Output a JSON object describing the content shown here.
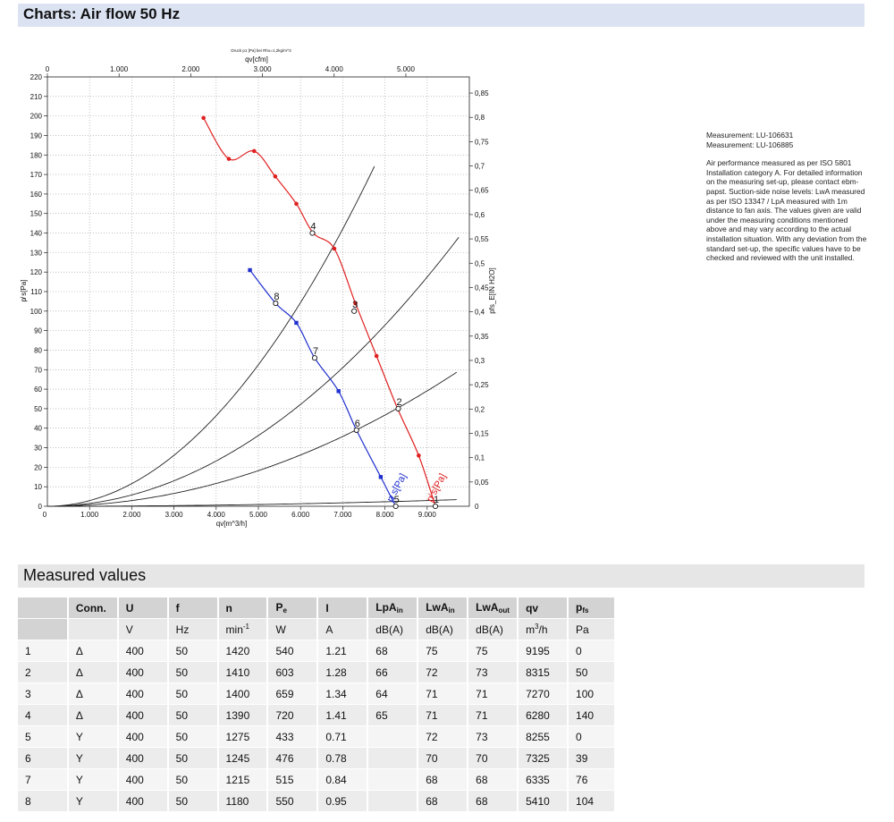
{
  "page": {
    "title": "Charts: Air flow 50 Hz",
    "measured_title": "Measured values"
  },
  "measurement": {
    "ids": [
      "Measurement: LU-106631",
      "Measurement: LU-106885"
    ],
    "note": "Air performance measured as per ISO 5801 Installation category A. For detailed information on the measuring set-up, please contact ebm-papst. Suction-side noise levels: LwA measured as per ISO 13347 / LpA measured with 1m distance to fan axis. The values given are valid under the measuring conditions mentioned above and may vary according to the actual installation situation. With any deviation from the standard set-up, the specific values have to be checked and reviewed with the unit installed."
  },
  "chart_data": {
    "type": "line",
    "top_caption": "Druck p1 [Pa] bei Rho=1,2kg/m^3",
    "xlabel": "qv[m^3/h]",
    "xlabel_top": "qv[cfm]",
    "ylabel": "p̸ s[Pa]",
    "ylabel_right": "pfs_E[IN H2O]",
    "xlim": [
      0,
      10000
    ],
    "ylim": [
      0,
      220
    ],
    "x_ticks": [
      "1.000",
      "2.000",
      "3.000",
      "4.000",
      "5.000",
      "6.000",
      "7.000",
      "8.000",
      "9.000"
    ],
    "x_tick_values": [
      1000,
      2000,
      3000,
      4000,
      5000,
      6000,
      7000,
      8000,
      9000
    ],
    "x_top_ticks": [
      "0",
      "1.000",
      "2.000",
      "3.000",
      "4.000",
      "5.000"
    ],
    "x_top_tick_values": [
      0,
      1000,
      2000,
      3000,
      4000,
      5000
    ],
    "y_ticks": [
      0,
      10,
      20,
      30,
      40,
      50,
      60,
      70,
      80,
      90,
      100,
      110,
      120,
      130,
      140,
      150,
      160,
      170,
      180,
      190,
      200,
      210,
      220
    ],
    "y_right_ticks": [
      "0,05",
      "0,1",
      "0,15",
      "0,2",
      "0,25",
      "0,3",
      "0,35",
      "0,4",
      "0,45",
      "0,5",
      "0,55",
      "0,6",
      "0,65",
      "0,7",
      "0,75",
      "0,8",
      "0,85"
    ],
    "y_right_tick_values": [
      0.05,
      0.1,
      0.15,
      0.2,
      0.25,
      0.3,
      0.35,
      0.4,
      0.45,
      0.5,
      0.55,
      0.6,
      0.65,
      0.7,
      0.75,
      0.8,
      0.85
    ],
    "grid": true,
    "series": [
      {
        "name": "p̸ s[Pa]",
        "color": "#e02020",
        "x": [
          3700,
          4300,
          4900,
          5400,
          5900,
          6300,
          6800,
          7300,
          7800,
          8300,
          8800,
          9195
        ],
        "y": [
          199,
          178,
          182,
          169,
          155,
          140,
          132,
          104,
          77,
          50,
          26,
          0
        ]
      },
      {
        "name": "p̸ s[Pa]",
        "color": "#2030d0",
        "x": [
          4800,
          5410,
          5900,
          6335,
          6900,
          7325,
          7900,
          8255
        ],
        "y": [
          121,
          104,
          94,
          76,
          59,
          39,
          15,
          0
        ]
      }
    ],
    "system_curves": [
      {
        "k": 2.9e-06,
        "x_end": 7750
      },
      {
        "k": 1.45e-06,
        "x_end": 9750
      },
      {
        "k": 7.3e-07,
        "x_end": 9700
      },
      {
        "k": 3.6e-08,
        "x_end": 9700
      }
    ],
    "points": [
      {
        "label": "1",
        "x": 9195,
        "y": 0
      },
      {
        "label": "2",
        "x": 8315,
        "y": 50
      },
      {
        "label": "3",
        "x": 7270,
        "y": 100
      },
      {
        "label": "4",
        "x": 6280,
        "y": 140
      },
      {
        "label": "5",
        "x": 8255,
        "y": 0
      },
      {
        "label": "6",
        "x": 7325,
        "y": 39
      },
      {
        "label": "7",
        "x": 6335,
        "y": 76
      },
      {
        "label": "8",
        "x": 5410,
        "y": 104
      }
    ]
  },
  "table": {
    "headers": [
      "",
      "Conn.",
      "U",
      "f",
      "n",
      "Pe",
      "I",
      "LpAin",
      "LwAin",
      "LwAout",
      "qv",
      "pfs"
    ],
    "units": [
      "",
      "",
      "V",
      "Hz",
      "min-1",
      "W",
      "A",
      "dB(A)",
      "dB(A)",
      "dB(A)",
      "m3/h",
      "Pa"
    ],
    "rows": [
      [
        "1",
        "Δ",
        "400",
        "50",
        "1420",
        "540",
        "1.21",
        "68",
        "75",
        "75",
        "9195",
        "0"
      ],
      [
        "2",
        "Δ",
        "400",
        "50",
        "1410",
        "603",
        "1.28",
        "66",
        "72",
        "73",
        "8315",
        "50"
      ],
      [
        "3",
        "Δ",
        "400",
        "50",
        "1400",
        "659",
        "1.34",
        "64",
        "71",
        "71",
        "7270",
        "100"
      ],
      [
        "4",
        "Δ",
        "400",
        "50",
        "1390",
        "720",
        "1.41",
        "65",
        "71",
        "71",
        "6280",
        "140"
      ],
      [
        "5",
        "Y",
        "400",
        "50",
        "1275",
        "433",
        "0.71",
        "",
        "72",
        "73",
        "8255",
        "0"
      ],
      [
        "6",
        "Y",
        "400",
        "50",
        "1245",
        "476",
        "0.78",
        "",
        "70",
        "70",
        "7325",
        "39"
      ],
      [
        "7",
        "Y",
        "400",
        "50",
        "1215",
        "515",
        "0.84",
        "",
        "68",
        "68",
        "6335",
        "76"
      ],
      [
        "8",
        "Y",
        "400",
        "50",
        "1180",
        "550",
        "0.95",
        "",
        "68",
        "68",
        "5410",
        "104"
      ]
    ]
  }
}
